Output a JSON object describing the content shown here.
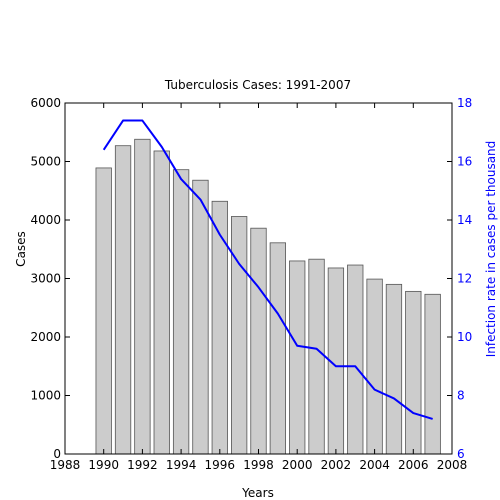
{
  "chart_data": {
    "type": "bar",
    "title": "Tuberculosis Cases: 1991-2007",
    "xlabel": "Years",
    "ylabel": "Cases",
    "ylabel_right": "Infection rate in cases per thousand",
    "xlim": [
      1988,
      2008
    ],
    "ylim": [
      0,
      6000
    ],
    "ylim_right": [
      6,
      18
    ],
    "x_ticks": [
      "1988",
      "1990",
      "1992",
      "1994",
      "1996",
      "1998",
      "2000",
      "2002",
      "2004",
      "2006",
      "2008"
    ],
    "y_ticks": [
      "0",
      "1000",
      "2000",
      "3000",
      "4000",
      "5000",
      "6000"
    ],
    "y_ticks_right": [
      "6",
      "8",
      "10",
      "12",
      "14",
      "16",
      "18"
    ],
    "grid": false,
    "bar_color": "#cccccc",
    "line_color": "#0000ff",
    "x": [
      1990,
      1991,
      1992,
      1993,
      1994,
      1995,
      1996,
      1997,
      1998,
      1999,
      2000,
      2001,
      2002,
      2003,
      2004,
      2005,
      2006,
      2007
    ],
    "series": [
      {
        "type": "bar",
        "axis": "left",
        "values": [
          4890,
          5270,
          5380,
          5180,
          4860,
          4680,
          4320,
          4060,
          3860,
          3610,
          3300,
          3330,
          3180,
          3230,
          2990,
          2900,
          2780,
          2730
        ]
      },
      {
        "type": "line",
        "axis": "right",
        "values": [
          16.4,
          17.4,
          17.4,
          16.5,
          15.4,
          14.7,
          13.5,
          12.5,
          11.7,
          10.8,
          9.7,
          9.6,
          9.0,
          9.0,
          8.2,
          7.9,
          7.4,
          7.2
        ]
      }
    ]
  }
}
